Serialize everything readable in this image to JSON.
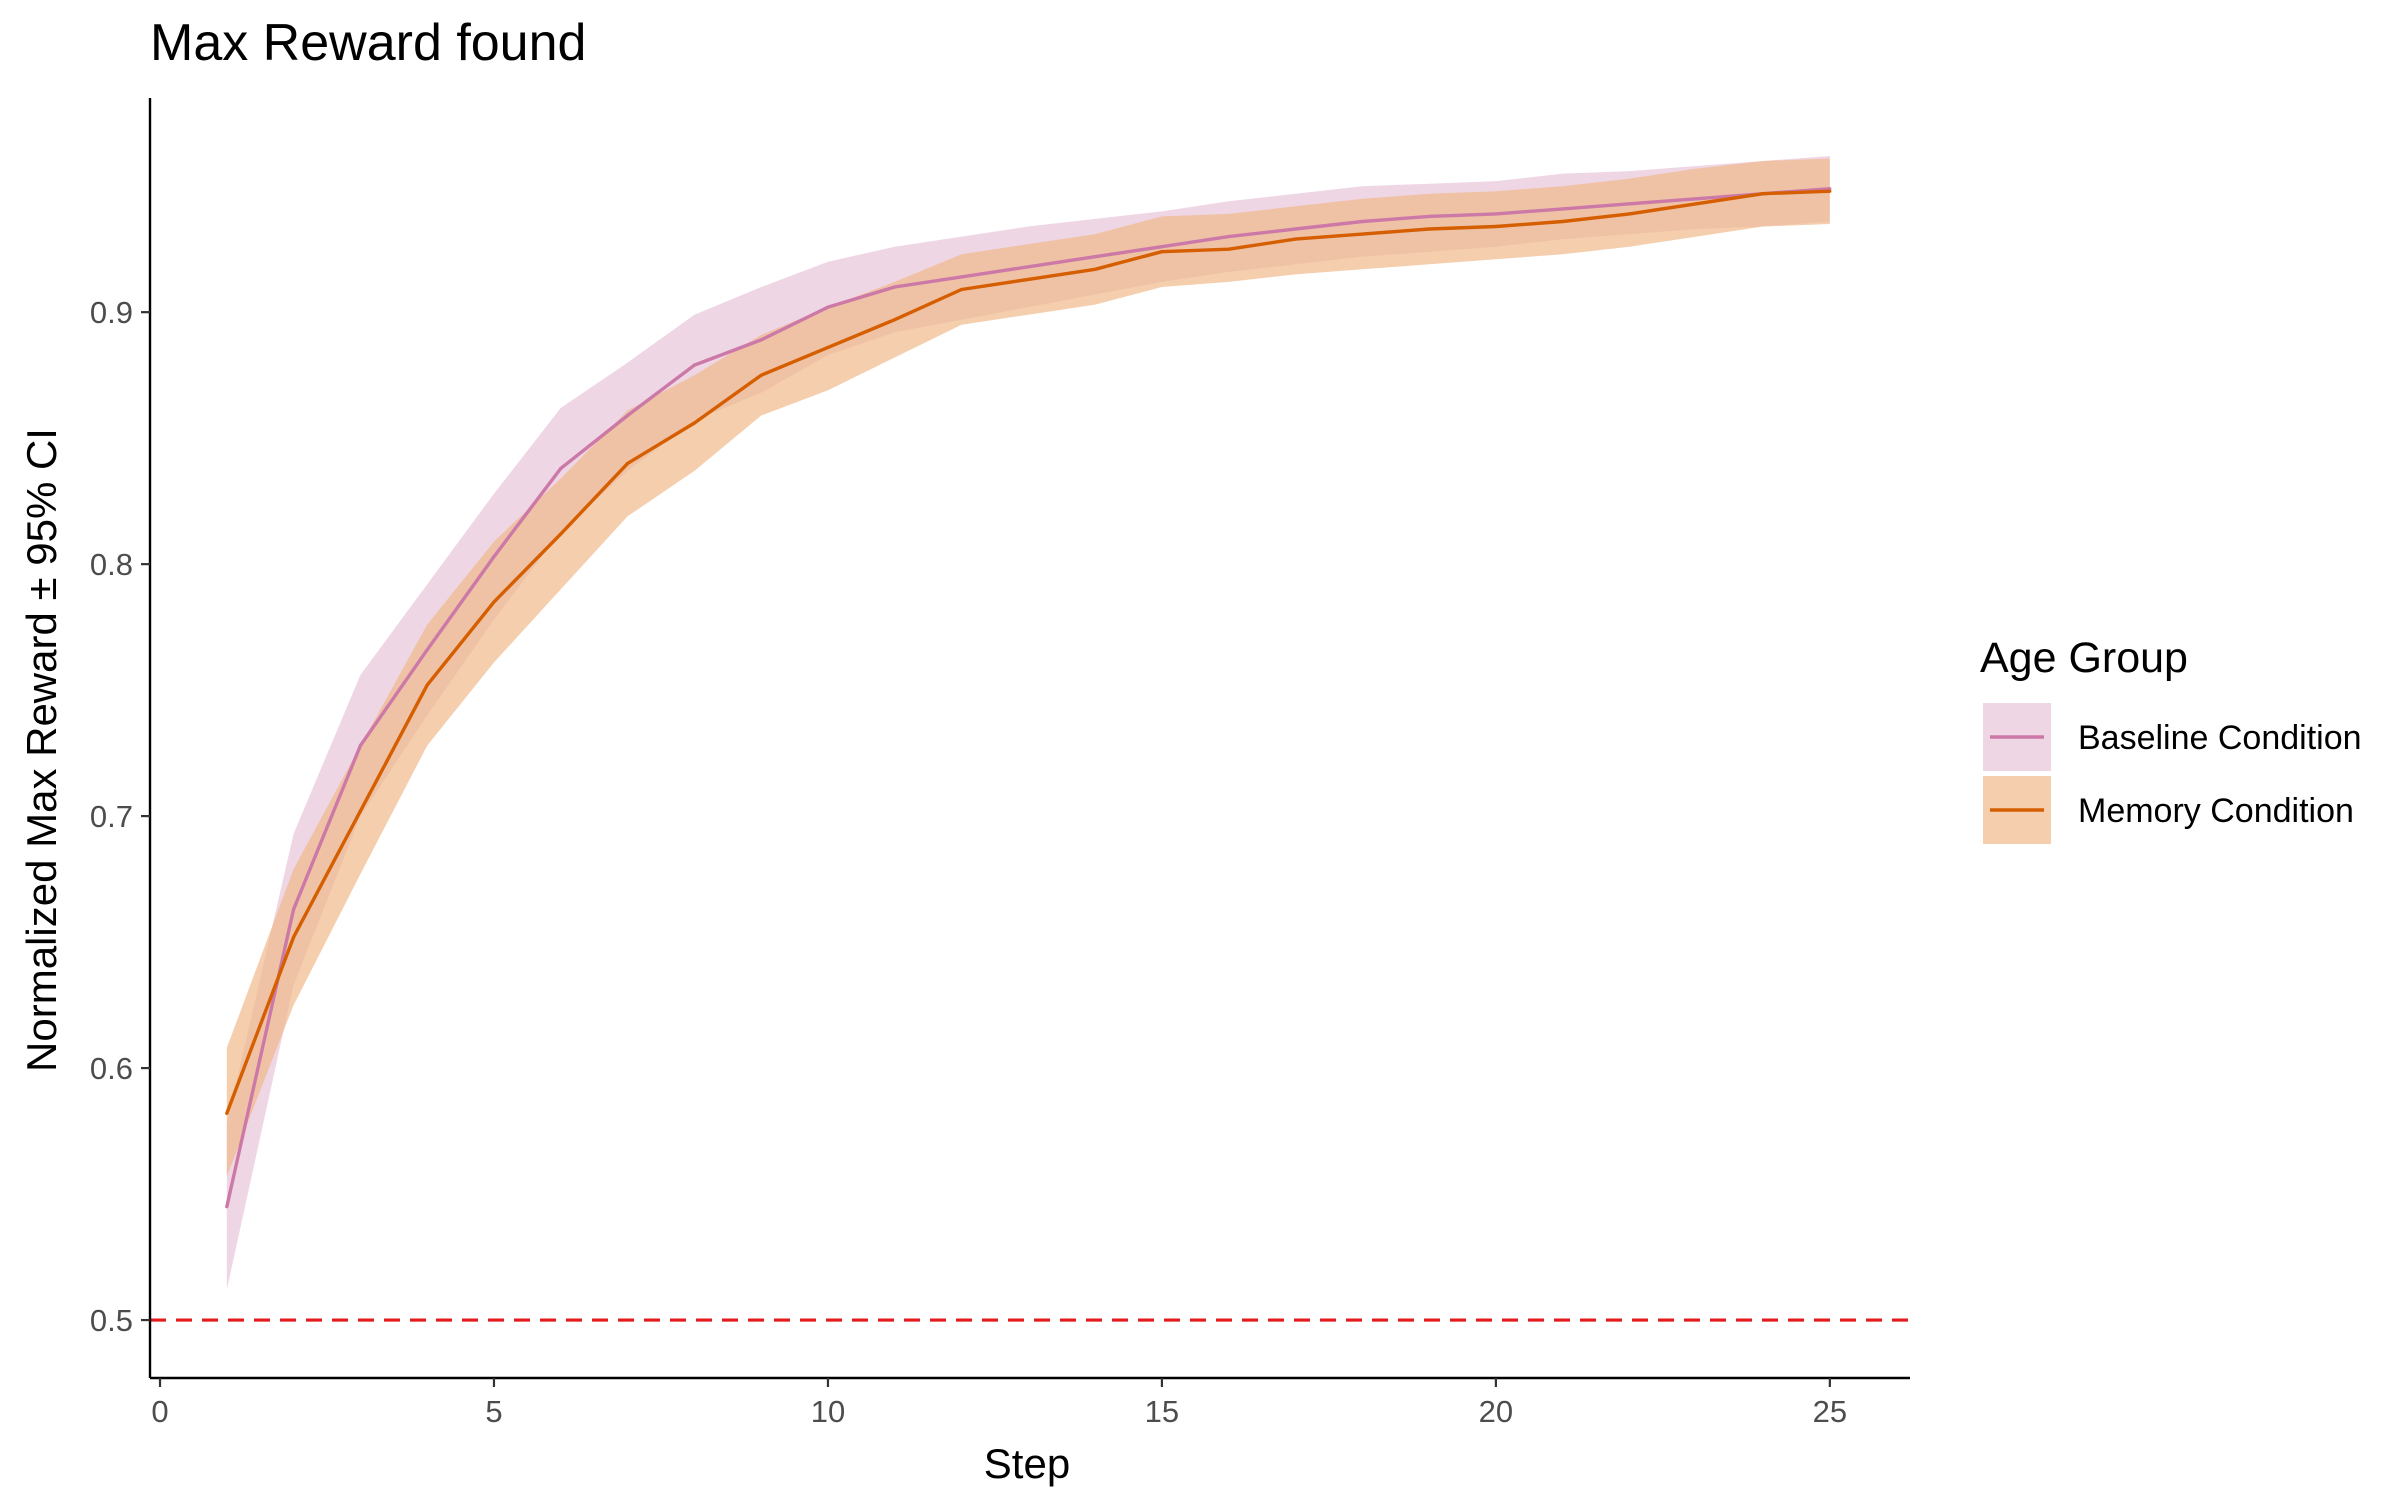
{
  "chart_data": {
    "type": "line",
    "title": "Max Reward found",
    "xlabel": "Step",
    "ylabel": "Normalized Max Reward ± 95% CI",
    "xlim": [
      -0.15,
      26.2
    ],
    "ylim": [
      0.477,
      0.985
    ],
    "x_ticks": [
      0,
      5,
      10,
      15,
      20,
      25
    ],
    "y_ticks": [
      0.5,
      0.6,
      0.7,
      0.8,
      0.9
    ],
    "y_tick_labels": [
      "0.5",
      "0.6",
      "0.7",
      "0.8",
      "0.9"
    ],
    "grid": false,
    "reference_line": {
      "y": 0.5,
      "style": "dashed",
      "color": "#e41a1c"
    },
    "legend": {
      "title": "Age Group",
      "position": "right"
    },
    "x": [
      1,
      2,
      3,
      4,
      5,
      6,
      7,
      8,
      9,
      10,
      11,
      12,
      13,
      14,
      15,
      16,
      17,
      18,
      19,
      20,
      21,
      22,
      23,
      24,
      25
    ],
    "series": [
      {
        "name": "Baseline Condition",
        "color": "#cc79a7",
        "fill": "#e8c4da",
        "values": [
          0.545,
          0.663,
          0.728,
          0.766,
          0.803,
          0.838,
          0.859,
          0.879,
          0.889,
          0.902,
          0.91,
          0.914,
          0.918,
          0.922,
          0.926,
          0.93,
          0.933,
          0.936,
          0.938,
          0.939,
          0.941,
          0.943,
          0.945,
          0.947,
          0.949
        ],
        "lower": [
          0.512,
          0.633,
          0.7,
          0.74,
          0.778,
          0.813,
          0.837,
          0.857,
          0.868,
          0.883,
          0.892,
          0.897,
          0.902,
          0.907,
          0.912,
          0.916,
          0.919,
          0.922,
          0.924,
          0.926,
          0.929,
          0.931,
          0.933,
          0.934,
          0.936
        ],
        "upper": [
          0.578,
          0.693,
          0.756,
          0.792,
          0.828,
          0.862,
          0.88,
          0.899,
          0.91,
          0.92,
          0.926,
          0.93,
          0.934,
          0.937,
          0.94,
          0.944,
          0.947,
          0.95,
          0.951,
          0.952,
          0.955,
          0.956,
          0.958,
          0.96,
          0.962
        ]
      },
      {
        "name": "Memory Condition",
        "color": "#d55e00",
        "fill": "#f0b98a",
        "values": [
          0.582,
          0.652,
          0.702,
          0.752,
          0.785,
          0.812,
          0.84,
          0.856,
          0.875,
          0.886,
          0.897,
          0.909,
          0.913,
          0.917,
          0.924,
          0.925,
          0.929,
          0.931,
          0.933,
          0.934,
          0.936,
          0.939,
          0.943,
          0.947,
          0.948
        ],
        "lower": [
          0.557,
          0.625,
          0.677,
          0.728,
          0.761,
          0.79,
          0.819,
          0.837,
          0.859,
          0.869,
          0.882,
          0.895,
          0.899,
          0.903,
          0.91,
          0.912,
          0.915,
          0.917,
          0.919,
          0.921,
          0.923,
          0.926,
          0.93,
          0.934,
          0.935
        ],
        "upper": [
          0.608,
          0.679,
          0.728,
          0.776,
          0.809,
          0.834,
          0.861,
          0.875,
          0.891,
          0.902,
          0.912,
          0.923,
          0.927,
          0.931,
          0.938,
          0.939,
          0.942,
          0.945,
          0.947,
          0.948,
          0.95,
          0.953,
          0.957,
          0.96,
          0.961
        ]
      }
    ]
  }
}
